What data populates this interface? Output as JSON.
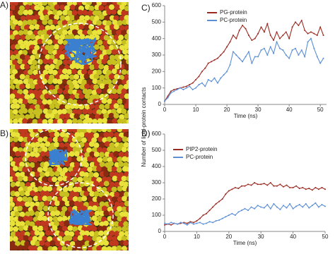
{
  "images": [
    {
      "label": "A)"
    },
    {
      "label": "B)"
    }
  ],
  "ylabel": "Number of lipid-protein contacts",
  "chart_data": [
    {
      "type": "line",
      "panel_label": "C)",
      "xlabel": "Time (ns)",
      "x": [
        0,
        1,
        2,
        3,
        4,
        5,
        6,
        7,
        8,
        9,
        10,
        11,
        12,
        13,
        14,
        15,
        16,
        17,
        18,
        19,
        20,
        21,
        22,
        23,
        24,
        25,
        26,
        27,
        28,
        29,
        30,
        31,
        32,
        33,
        34,
        35,
        36,
        37,
        38,
        39,
        40,
        41,
        42,
        43,
        44,
        45,
        46,
        47,
        48,
        49,
        50,
        51
      ],
      "xlim": [
        0,
        52
      ],
      "xticks": [
        0,
        10,
        20,
        30,
        40,
        50
      ],
      "ylim": [
        0,
        600
      ],
      "yticks": [
        0,
        100,
        200,
        300,
        400,
        500,
        600
      ],
      "legend": "upper left",
      "series": [
        {
          "name": "PG-protein",
          "color": "#9b2a22",
          "values": [
            20,
            50,
            80,
            90,
            95,
            100,
            105,
            110,
            120,
            130,
            150,
            170,
            200,
            220,
            250,
            260,
            270,
            280,
            300,
            320,
            350,
            380,
            420,
            400,
            450,
            480,
            460,
            420,
            390,
            400,
            430,
            470,
            440,
            490,
            420,
            390,
            440,
            400,
            420,
            440,
            400,
            470,
            500,
            480,
            510,
            450,
            430,
            440,
            430,
            420,
            470,
            420
          ]
        },
        {
          "name": "PC-protein",
          "color": "#5b8fd6",
          "values": [
            20,
            40,
            70,
            80,
            90,
            100,
            90,
            100,
            110,
            90,
            100,
            120,
            130,
            110,
            150,
            140,
            160,
            130,
            160,
            180,
            200,
            240,
            320,
            300,
            280,
            260,
            290,
            320,
            250,
            290,
            290,
            330,
            340,
            300,
            350,
            310,
            380,
            340,
            330,
            300,
            280,
            330,
            340,
            300,
            330,
            290,
            380,
            400,
            340,
            290,
            250,
            280
          ]
        }
      ]
    },
    {
      "type": "line",
      "panel_label": "D)",
      "xlabel": "Time (ns)",
      "x": [
        0,
        1,
        2,
        3,
        4,
        5,
        6,
        7,
        8,
        9,
        10,
        11,
        12,
        13,
        14,
        15,
        16,
        17,
        18,
        19,
        20,
        21,
        22,
        23,
        24,
        25,
        26,
        27,
        28,
        29,
        30,
        31,
        32,
        33,
        34,
        35,
        36,
        37,
        38,
        39,
        40,
        41,
        42,
        43,
        44,
        45,
        46,
        47,
        48,
        49,
        50
      ],
      "xlim": [
        0,
        50
      ],
      "xticks": [
        0,
        10,
        20,
        30,
        40,
        50
      ],
      "ylim": [
        0,
        600
      ],
      "yticks": [
        0,
        100,
        200,
        300,
        400,
        500,
        600
      ],
      "legend": "upper left",
      "series": [
        {
          "name": "PIP2-protein",
          "color": "#9b2a22",
          "values": [
            40,
            45,
            40,
            50,
            45,
            50,
            55,
            50,
            60,
            55,
            65,
            80,
            100,
            110,
            130,
            150,
            170,
            185,
            200,
            230,
            250,
            260,
            270,
            265,
            280,
            280,
            290,
            285,
            300,
            290,
            290,
            295,
            285,
            300,
            280,
            280,
            290,
            275,
            285,
            270,
            270,
            280,
            265,
            270,
            260,
            265,
            255,
            270,
            260,
            270,
            260
          ]
        },
        {
          "name": "PC-protein",
          "color": "#5b8fd6",
          "values": [
            50,
            45,
            55,
            50,
            45,
            55,
            50,
            40,
            55,
            45,
            50,
            55,
            45,
            50,
            60,
            55,
            65,
            70,
            80,
            90,
            100,
            110,
            100,
            120,
            130,
            140,
            130,
            150,
            140,
            160,
            150,
            145,
            165,
            140,
            170,
            150,
            135,
            160,
            145,
            170,
            140,
            155,
            165,
            150,
            170,
            145,
            160,
            175,
            150,
            165,
            155
          ]
        }
      ]
    }
  ]
}
